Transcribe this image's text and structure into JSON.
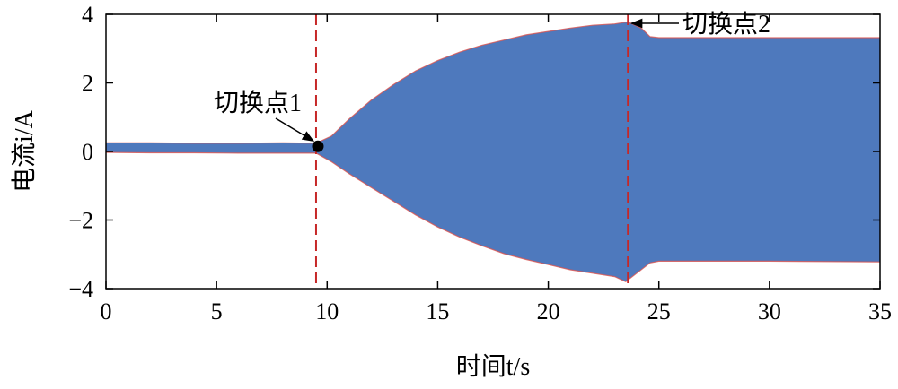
{
  "chart_data": {
    "type": "area",
    "ylabel": "电流i/A",
    "xlabel": "时间t/s",
    "xlim": [
      0,
      35
    ],
    "ylim": [
      -4,
      4
    ],
    "xticks": [
      0,
      5,
      10,
      15,
      20,
      25,
      30,
      35
    ],
    "yticks": [
      4,
      2,
      0,
      -2,
      -4
    ],
    "ytick_labels": [
      "4",
      "2",
      "0",
      "−2",
      "−4"
    ],
    "grid": false,
    "colors": {
      "fill": "#4e79bd",
      "edge": "#d9534f",
      "marker_line": "#c62828",
      "marker_dot": "#000000"
    },
    "series": [
      {
        "upper": [
          [
            0,
            0.25
          ],
          [
            2,
            0.25
          ],
          [
            4,
            0.24
          ],
          [
            6,
            0.24
          ],
          [
            8,
            0.25
          ],
          [
            9.5,
            0.24
          ],
          [
            10.2,
            0.45
          ],
          [
            11,
            0.95
          ],
          [
            12,
            1.5
          ],
          [
            13,
            1.95
          ],
          [
            14,
            2.35
          ],
          [
            15,
            2.65
          ],
          [
            16,
            2.9
          ],
          [
            17,
            3.1
          ],
          [
            18,
            3.25
          ],
          [
            19,
            3.4
          ],
          [
            20,
            3.5
          ],
          [
            21,
            3.6
          ],
          [
            22,
            3.68
          ],
          [
            23,
            3.72
          ],
          [
            23.6,
            3.78
          ],
          [
            24.2,
            3.6
          ],
          [
            24.6,
            3.35
          ],
          [
            25,
            3.32
          ],
          [
            30,
            3.32
          ],
          [
            35,
            3.32
          ]
        ],
        "lower": [
          [
            0,
            -0.03
          ],
          [
            2,
            -0.04
          ],
          [
            4,
            -0.04
          ],
          [
            6,
            -0.05
          ],
          [
            8,
            -0.05
          ],
          [
            9.5,
            -0.05
          ],
          [
            10.2,
            -0.3
          ],
          [
            11,
            -0.65
          ],
          [
            12,
            -1.05
          ],
          [
            13,
            -1.45
          ],
          [
            14,
            -1.85
          ],
          [
            15,
            -2.2
          ],
          [
            16,
            -2.5
          ],
          [
            17,
            -2.75
          ],
          [
            18,
            -2.98
          ],
          [
            19,
            -3.15
          ],
          [
            20,
            -3.3
          ],
          [
            21,
            -3.45
          ],
          [
            22,
            -3.55
          ],
          [
            23,
            -3.65
          ],
          [
            23.5,
            -3.8
          ],
          [
            24,
            -3.55
          ],
          [
            24.6,
            -3.25
          ],
          [
            25,
            -3.2
          ],
          [
            30,
            -3.2
          ],
          [
            35,
            -3.22
          ]
        ]
      }
    ],
    "switch_points": [
      {
        "x": 9.5,
        "label": "切换点1"
      },
      {
        "x": 23.6,
        "label": "切换点2"
      }
    ],
    "marker_dot": {
      "x": 9.5,
      "y": 0.15
    }
  }
}
